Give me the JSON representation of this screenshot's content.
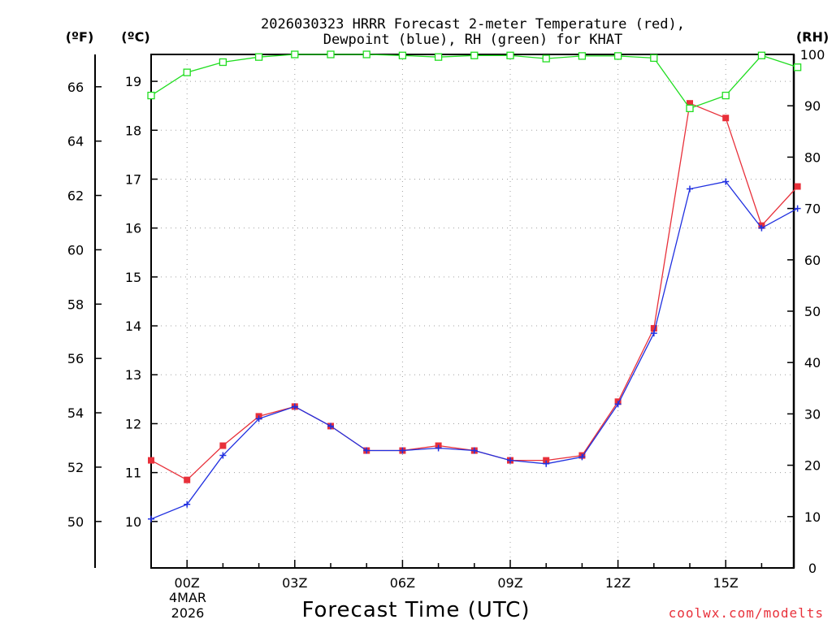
{
  "chart_data": {
    "type": "line",
    "title": [
      "2026030323 HRRR Forecast 2-meter Temperature (red),",
      "Dewpoint (blue), RH (green) for KHAT"
    ],
    "xlabel": "Forecast Time (UTC)",
    "credit": "coolwx.com/modelts",
    "date_label": [
      "4MAR",
      "2026"
    ],
    "units": {
      "fahrenheit": "(ºF)",
      "celsius": "(ºC)",
      "rh": "(RH)"
    },
    "x": [
      "23Z",
      "00Z",
      "01Z",
      "02Z",
      "03Z",
      "04Z",
      "05Z",
      "06Z",
      "07Z",
      "08Z",
      "09Z",
      "10Z",
      "11Z",
      "12Z",
      "13Z",
      "14Z",
      "15Z",
      "16Z",
      "17Z"
    ],
    "x_tick_labels": [
      {
        "x": "00Z",
        "label": "00Z"
      },
      {
        "x": "03Z",
        "label": "03Z"
      },
      {
        "x": "06Z",
        "label": "06Z"
      },
      {
        "x": "09Z",
        "label": "09Z"
      },
      {
        "x": "12Z",
        "label": "12Z"
      },
      {
        "x": "15Z",
        "label": "15Z"
      }
    ],
    "celsius_axis": {
      "range": [
        9.05,
        19.55
      ],
      "ticks": [
        10,
        11,
        12,
        13,
        14,
        15,
        16,
        17,
        18,
        19
      ]
    },
    "fahrenheit_axis": {
      "ticks": [
        50,
        52,
        54,
        56,
        58,
        60,
        62,
        64,
        66
      ]
    },
    "rh_axis": {
      "range": [
        0,
        100
      ],
      "ticks": [
        0,
        10,
        20,
        30,
        40,
        50,
        60,
        70,
        80,
        90,
        100
      ]
    },
    "series": [
      {
        "name": "Temperature",
        "axis": "celsius",
        "color": "#e8303a",
        "marker": "filled-square",
        "values": [
          11.25,
          10.85,
          11.55,
          12.15,
          12.35,
          11.95,
          11.45,
          11.45,
          11.55,
          11.45,
          11.25,
          11.25,
          11.35,
          12.45,
          13.95,
          18.55,
          18.25,
          16.05,
          16.85
        ]
      },
      {
        "name": "Dewpoint",
        "axis": "celsius",
        "color": "#2030e0",
        "marker": "plus",
        "values": [
          10.05,
          10.35,
          11.35,
          12.1,
          12.35,
          11.95,
          11.45,
          11.45,
          11.5,
          11.45,
          11.25,
          11.18,
          11.32,
          12.4,
          13.85,
          16.8,
          16.95,
          16.0,
          16.4
        ]
      },
      {
        "name": "RH",
        "axis": "rh",
        "color": "#20dd20",
        "marker": "open-square",
        "values": [
          92.0,
          96.5,
          98.5,
          99.5,
          100.0,
          100.0,
          100.0,
          99.8,
          99.5,
          99.8,
          99.8,
          99.2,
          99.7,
          99.7,
          99.3,
          89.5,
          92.0,
          99.8,
          97.5
        ]
      }
    ]
  }
}
